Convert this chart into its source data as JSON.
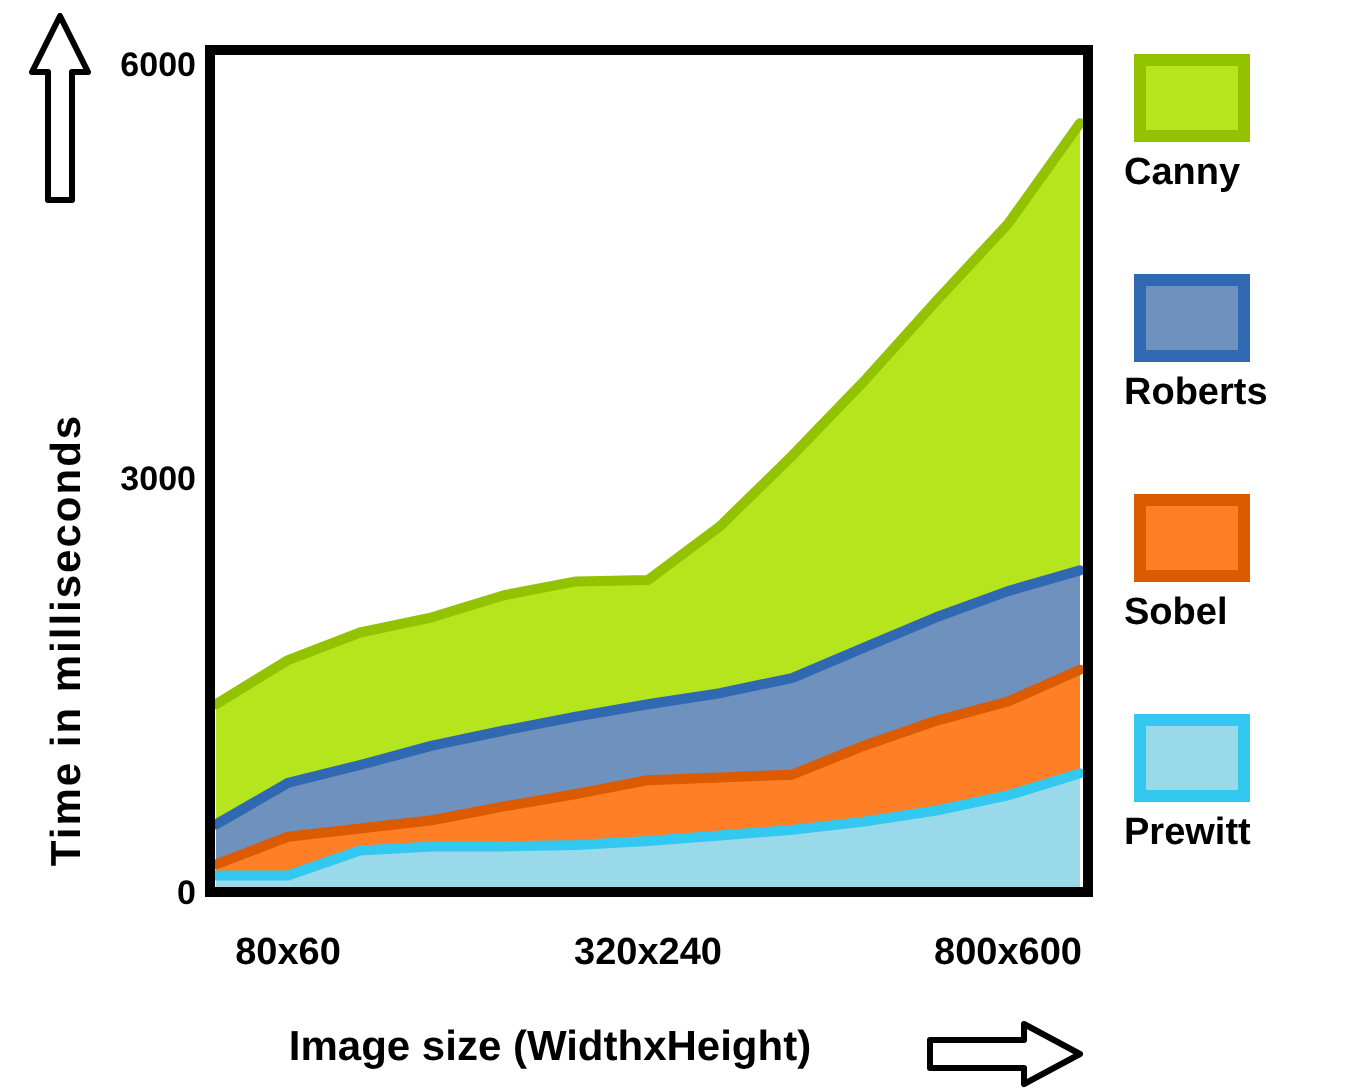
{
  "chart_data": {
    "type": "area",
    "xlabel": "Image size (WidthxHeight)",
    "ylabel": "Time in milliseconds",
    "categories": [
      null,
      "80x60",
      null,
      null,
      null,
      null,
      "320x240",
      null,
      null,
      null,
      null,
      "800x600",
      null
    ],
    "ylim": [
      0,
      6100
    ],
    "yticks": [
      0,
      3000,
      6000
    ],
    "legend": "right",
    "grid": false,
    "series": [
      {
        "name": "Canny",
        "color": "#b5e61d",
        "values": [
          1360,
          1680,
          1880,
          1990,
          2150,
          2250,
          2260,
          2650,
          3160,
          3700,
          4280,
          4840,
          5570
        ]
      },
      {
        "name": "Roberts",
        "color": "#6f91bd",
        "values": [
          490,
          790,
          920,
          1060,
          1170,
          1270,
          1360,
          1440,
          1550,
          1770,
          1990,
          2180,
          2330
        ]
      },
      {
        "name": "Sobel",
        "color": "#ff7f27",
        "values": [
          200,
          400,
          460,
          520,
          620,
          710,
          810,
          830,
          850,
          1060,
          1240,
          1380,
          1610
        ]
      },
      {
        "name": "Prewitt",
        "color": "#99d9ea",
        "values": [
          120,
          120,
          300,
          330,
          330,
          340,
          370,
          410,
          450,
          510,
          590,
          700,
          860
        ]
      }
    ]
  }
}
